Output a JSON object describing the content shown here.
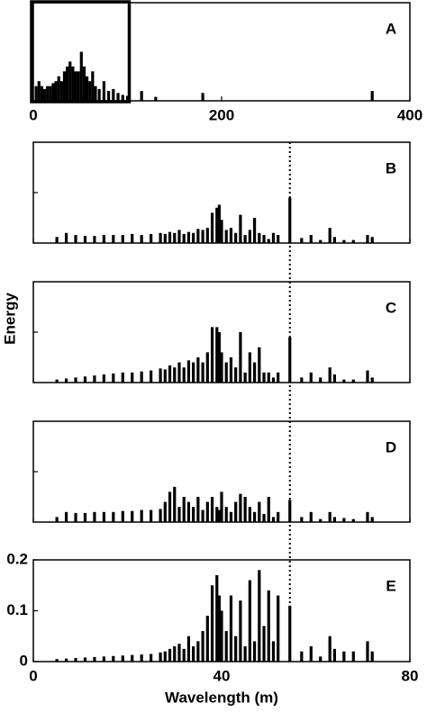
{
  "chart_data": [
    {
      "type": "bar",
      "label": "A",
      "color": "#000000",
      "x": [
        3,
        6,
        9,
        12,
        15,
        18,
        21,
        24,
        27,
        30,
        33,
        36,
        39,
        42,
        45,
        48,
        51,
        54,
        57,
        60,
        63,
        66,
        70,
        75,
        80,
        85,
        90,
        95,
        100,
        115,
        130,
        180,
        360
      ],
      "values": [
        0.15,
        0.2,
        0.15,
        0.12,
        0.15,
        0.15,
        0.18,
        0.2,
        0.25,
        0.2,
        0.3,
        0.35,
        0.4,
        0.35,
        0.3,
        0.3,
        0.5,
        0.35,
        0.25,
        0.2,
        0.3,
        0.15,
        0.12,
        0.2,
        0.1,
        0.12,
        0.08,
        0.06,
        0.05,
        0.1,
        0.04,
        0.08,
        0.1
      ],
      "xlim": [
        0,
        400
      ],
      "xticks": [
        0,
        200,
        400
      ],
      "ylim": [
        0,
        1
      ],
      "highlight_xlim": [
        0,
        100
      ]
    },
    {
      "type": "bar",
      "label": "B",
      "color": "#000000",
      "x": [
        5,
        7,
        9,
        11,
        13,
        15,
        17,
        19,
        21,
        23,
        25,
        27,
        28,
        29,
        30,
        31,
        32,
        33,
        34,
        35,
        36,
        37,
        38,
        39,
        39.5,
        40,
        41,
        42,
        43,
        44,
        45,
        46,
        47,
        48,
        49,
        50,
        51,
        52,
        54.5,
        57,
        59,
        61,
        63,
        64,
        66,
        68,
        71,
        72
      ],
      "values": [
        0.06,
        0.1,
        0.08,
        0.07,
        0.07,
        0.08,
        0.08,
        0.08,
        0.09,
        0.08,
        0.09,
        0.1,
        0.09,
        0.11,
        0.1,
        0.13,
        0.09,
        0.11,
        0.1,
        0.14,
        0.13,
        0.15,
        0.3,
        0.35,
        0.38,
        0.23,
        0.13,
        0.15,
        0.1,
        0.28,
        0.08,
        0.13,
        0.25,
        0.1,
        0.08,
        0.04,
        0.1,
        0.08,
        0.45,
        0.05,
        0.08,
        0.03,
        0.15,
        0.06,
        0.03,
        0.03,
        0.08,
        0.06
      ],
      "xlim": [
        0,
        80
      ],
      "xticks": [
        0,
        40,
        80
      ],
      "xtick_labels": false,
      "ylim": [
        0,
        1
      ],
      "yticks": [
        0.5
      ],
      "ytick_labels": false
    },
    {
      "type": "bar",
      "label": "C",
      "color": "#000000",
      "ylabel": "Energy",
      "x": [
        5,
        7,
        9,
        11,
        13,
        15,
        17,
        19,
        21,
        23,
        25,
        27,
        28,
        29,
        30,
        31,
        32,
        33,
        34,
        35,
        36,
        37,
        38,
        39,
        39.5,
        40,
        41,
        42,
        43,
        44,
        45,
        46,
        47,
        48,
        49,
        50,
        51,
        52,
        54.5,
        57,
        59,
        61,
        63,
        64,
        66,
        68,
        71,
        72
      ],
      "values": [
        0.03,
        0.04,
        0.05,
        0.06,
        0.07,
        0.08,
        0.09,
        0.1,
        0.1,
        0.11,
        0.12,
        0.14,
        0.13,
        0.17,
        0.15,
        0.2,
        0.15,
        0.22,
        0.2,
        0.25,
        0.2,
        0.3,
        0.55,
        0.55,
        0.5,
        0.3,
        0.2,
        0.25,
        0.15,
        0.5,
        0.1,
        0.3,
        0.2,
        0.35,
        0.1,
        0.1,
        0.05,
        0.1,
        0.45,
        0.05,
        0.1,
        0.05,
        0.15,
        0.08,
        0.03,
        0.03,
        0.12,
        0.05
      ],
      "xlim": [
        0,
        80
      ],
      "xticks": [
        0,
        40,
        80
      ],
      "xtick_labels": false,
      "ylim": [
        0,
        1
      ],
      "yticks": [
        0.5
      ],
      "ytick_labels": false
    },
    {
      "type": "bar",
      "label": "D",
      "color": "#000000",
      "x": [
        5,
        7,
        9,
        11,
        13,
        15,
        17,
        19,
        21,
        23,
        25,
        27,
        28,
        29,
        30,
        31,
        32,
        33,
        34,
        35,
        36,
        37,
        38,
        39,
        39.5,
        40,
        41,
        42,
        43,
        44,
        45,
        46,
        47,
        48,
        49,
        50,
        51,
        52,
        54.5,
        57,
        59,
        61,
        63,
        64,
        66,
        68,
        71,
        72
      ],
      "values": [
        0.05,
        0.1,
        0.09,
        0.09,
        0.1,
        0.1,
        0.1,
        0.11,
        0.11,
        0.12,
        0.12,
        0.13,
        0.2,
        0.3,
        0.35,
        0.15,
        0.25,
        0.2,
        0.15,
        0.25,
        0.12,
        0.2,
        0.25,
        0.15,
        0.12,
        0.3,
        0.15,
        0.1,
        0.2,
        0.28,
        0.25,
        0.15,
        0.1,
        0.2,
        0.08,
        0.25,
        0.05,
        0.1,
        0.22,
        0.05,
        0.1,
        0.03,
        0.1,
        0.05,
        0.04,
        0.03,
        0.1,
        0.05
      ],
      "xlim": [
        0,
        80
      ],
      "xticks": [
        0,
        40,
        80
      ],
      "xtick_labels": false,
      "ylim": [
        0,
        1
      ],
      "yticks": [
        0.5
      ],
      "ytick_labels": false
    },
    {
      "type": "bar",
      "label": "E",
      "color": "#000000",
      "xlabel": "Wavelength (m)",
      "x": [
        5,
        7,
        9,
        11,
        13,
        15,
        17,
        19,
        21,
        23,
        25,
        27,
        28,
        29,
        30,
        31,
        32,
        33,
        34,
        35,
        36,
        37,
        38,
        39,
        39.5,
        40,
        41,
        42,
        43,
        44,
        45,
        46,
        47,
        48,
        49,
        50,
        51,
        52,
        54.5,
        57,
        59,
        61,
        63,
        64,
        66,
        68,
        71,
        72
      ],
      "values": [
        0.005,
        0.006,
        0.007,
        0.008,
        0.009,
        0.01,
        0.011,
        0.012,
        0.013,
        0.014,
        0.015,
        0.018,
        0.02,
        0.025,
        0.03,
        0.035,
        0.025,
        0.05,
        0.03,
        0.04,
        0.06,
        0.09,
        0.15,
        0.17,
        0.13,
        0.1,
        0.06,
        0.13,
        0.05,
        0.12,
        0.03,
        0.16,
        0.04,
        0.18,
        0.07,
        0.14,
        0.04,
        0.13,
        0.11,
        0.02,
        0.03,
        0.01,
        0.05,
        0.025,
        0.02,
        0.02,
        0.04,
        0.02
      ],
      "xlim": [
        0,
        80
      ],
      "xticks": [
        0,
        40,
        80
      ],
      "ylim": [
        0,
        0.2
      ],
      "yticks": [
        0,
        0.1,
        0.2
      ],
      "reference_x": 54.5
    }
  ]
}
